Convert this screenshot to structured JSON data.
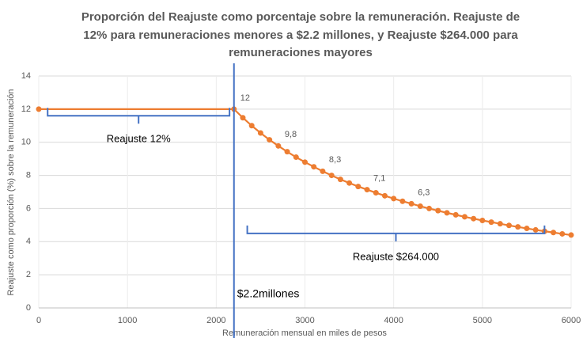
{
  "chart_data": {
    "type": "line",
    "title": [
      "Proporción del Reajuste como porcentaje sobre la remuneración. Reajuste de",
      "12% para remuneraciones menores a $2.2 millones, y Reajuste $264.000 para",
      "remuneraciones mayores"
    ],
    "xlabel": "Remuneración mensual en miles de pesos",
    "ylabel": "Reajuste como proporción (%) sobre la remuneración",
    "x": [
      0,
      2200,
      2300,
      2400,
      2500,
      2600,
      2700,
      2800,
      2900,
      3000,
      3100,
      3200,
      3300,
      3400,
      3500,
      3600,
      3700,
      3800,
      3900,
      4000,
      4100,
      4200,
      4300,
      4400,
      4500,
      4600,
      4700,
      4800,
      4900,
      5000,
      5100,
      5200,
      5300,
      5400,
      5500,
      5600,
      5700,
      5800,
      5900,
      6000
    ],
    "values": [
      12,
      12,
      11.48,
      11,
      10.56,
      10.15,
      9.78,
      9.43,
      9.1,
      8.8,
      8.52,
      8.25,
      8,
      7.76,
      7.54,
      7.33,
      7.14,
      6.95,
      6.77,
      6.6,
      6.44,
      6.29,
      6.14,
      6,
      5.87,
      5.74,
      5.62,
      5.5,
      5.39,
      5.28,
      5.18,
      5.08,
      4.98,
      4.89,
      4.8,
      4.71,
      4.63,
      4.55,
      4.47,
      4.4
    ],
    "value_labels": [
      null,
      "12",
      null,
      null,
      null,
      null,
      "9,8",
      null,
      null,
      null,
      null,
      "8,3",
      null,
      null,
      null,
      null,
      "7,1",
      null,
      null,
      null,
      null,
      "6,3",
      null,
      null,
      null,
      null,
      null,
      null,
      null,
      null,
      null,
      null,
      null,
      null,
      null,
      null,
      null,
      null,
      null,
      null
    ],
    "color": "#ed7d31",
    "xlim": [
      0,
      6000
    ],
    "xticks": [
      0,
      1000,
      2000,
      3000,
      4000,
      5000,
      6000
    ],
    "ylim": [
      0,
      14
    ],
    "yticks": [
      0,
      2,
      4,
      6,
      8,
      10,
      12,
      14
    ],
    "grid": true,
    "annotation_color": "#4472c4",
    "brackets": [
      {
        "text": "Reajuste 12%",
        "x": [
          100,
          2150
        ],
        "y": 11.6
      },
      {
        "text": "Reajuste $264.000",
        "x": [
          2350,
          5700
        ],
        "y": 4.5
      }
    ],
    "vline": {
      "text": "$2.2millones",
      "x": 2200
    }
  }
}
